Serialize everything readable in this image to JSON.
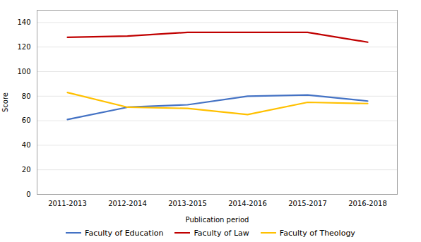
{
  "chart_data": {
    "type": "line",
    "categories": [
      "2011-2013",
      "2012-2014",
      "2013-2015",
      "2014-2016",
      "2015-2017",
      "2016-2018"
    ],
    "series": [
      {
        "name": "Faculty of Education",
        "color": "#4472C4",
        "values": [
          61,
          71,
          73,
          80,
          81,
          76
        ]
      },
      {
        "name": "Faculty of Law",
        "color": "#C00000",
        "values": [
          128,
          129,
          132,
          132,
          132,
          124
        ]
      },
      {
        "name": "Faculty of Theology",
        "color": "#FFC000",
        "values": [
          83,
          71,
          70,
          65,
          75,
          74
        ]
      }
    ],
    "xlabel": "Publication period",
    "ylabel": "Score",
    "ylim": [
      0,
      150
    ],
    "yticks": [
      0,
      20,
      40,
      60,
      80,
      100,
      120,
      140
    ],
    "grid": true,
    "legend": "bottom"
  }
}
